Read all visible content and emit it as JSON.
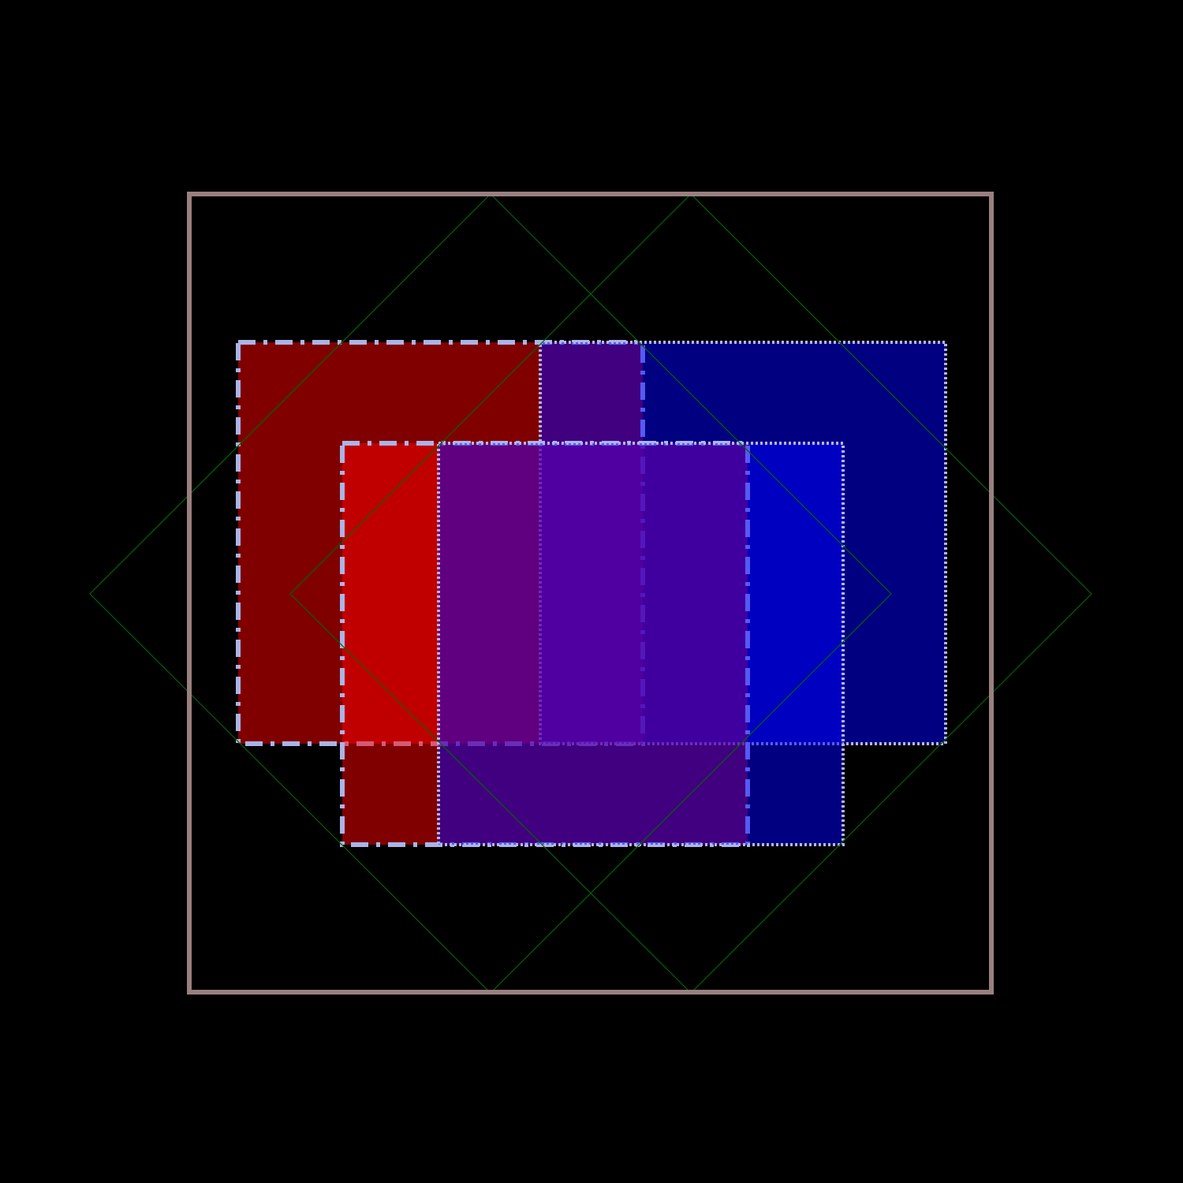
{
  "background": "#000000",
  "frame": {
    "color": "#9a7f7f"
  },
  "diamonds": {
    "color": "#006400"
  },
  "rectangles": [
    {
      "name": "red-rect-top-left",
      "fill": "#ff0000",
      "opacity": 0.5,
      "border": "#aab4e6",
      "dash": "dashdot"
    },
    {
      "name": "blue-rect-top-right",
      "fill": "#0000ff",
      "opacity": 0.5,
      "border": "#b4b4e6",
      "dash": "dotted"
    },
    {
      "name": "red-rect-bottom-left",
      "fill": "#ff0000",
      "opacity": 0.5,
      "border": "#aab4e6",
      "dash": "dashdot"
    },
    {
      "name": "blue-rect-bottom-right",
      "fill": "#0000ff",
      "opacity": 0.5,
      "border": "#b4b4e6",
      "dash": "dotted"
    }
  ]
}
